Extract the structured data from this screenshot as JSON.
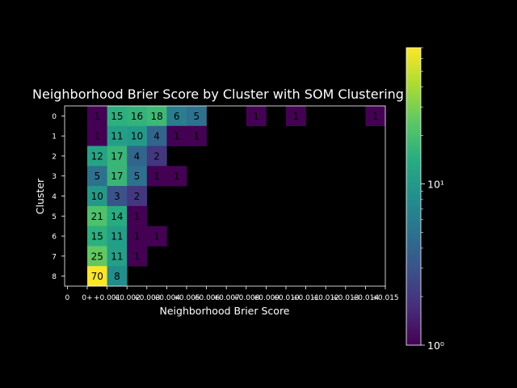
{
  "chart_data": {
    "type": "heatmap",
    "title": "Neighborhood Brier Score by Cluster with SOM Clustering",
    "xlabel": "Neighborhood Brier Score",
    "ylabel": "Cluster",
    "y_categories": [
      "0",
      "1",
      "2",
      "3",
      "4",
      "5",
      "6",
      "7",
      "8"
    ],
    "x_tick_labels": [
      "0",
      "0+",
      "+0.001",
      "+0.002",
      "+0.003",
      "+0.004",
      "+0.005",
      "+0.006",
      "+0.007",
      "+0.008",
      "+0.009",
      "+0.010",
      "+0.011",
      "+0.012",
      "+0.013",
      "+0.014",
      "+0.015"
    ],
    "x_bins": 15,
    "cells": [
      {
        "row": 0,
        "col": 1,
        "value": 1
      },
      {
        "row": 0,
        "col": 2,
        "value": 15
      },
      {
        "row": 0,
        "col": 3,
        "value": 16
      },
      {
        "row": 0,
        "col": 4,
        "value": 18
      },
      {
        "row": 0,
        "col": 5,
        "value": 6
      },
      {
        "row": 0,
        "col": 6,
        "value": 5
      },
      {
        "row": 0,
        "col": 9,
        "value": 1
      },
      {
        "row": 0,
        "col": 11,
        "value": 1
      },
      {
        "row": 0,
        "col": 15,
        "value": 1
      },
      {
        "row": 1,
        "col": 1,
        "value": 1
      },
      {
        "row": 1,
        "col": 2,
        "value": 11
      },
      {
        "row": 1,
        "col": 3,
        "value": 10
      },
      {
        "row": 1,
        "col": 4,
        "value": 4
      },
      {
        "row": 1,
        "col": 5,
        "value": 1
      },
      {
        "row": 1,
        "col": 6,
        "value": 1
      },
      {
        "row": 2,
        "col": 1,
        "value": 12
      },
      {
        "row": 2,
        "col": 2,
        "value": 17
      },
      {
        "row": 2,
        "col": 3,
        "value": 4
      },
      {
        "row": 2,
        "col": 4,
        "value": 2
      },
      {
        "row": 3,
        "col": 1,
        "value": 5
      },
      {
        "row": 3,
        "col": 2,
        "value": 17
      },
      {
        "row": 3,
        "col": 3,
        "value": 5
      },
      {
        "row": 3,
        "col": 4,
        "value": 1
      },
      {
        "row": 3,
        "col": 5,
        "value": 1
      },
      {
        "row": 4,
        "col": 1,
        "value": 10
      },
      {
        "row": 4,
        "col": 2,
        "value": 3
      },
      {
        "row": 4,
        "col": 3,
        "value": 2
      },
      {
        "row": 5,
        "col": 1,
        "value": 21
      },
      {
        "row": 5,
        "col": 2,
        "value": 14
      },
      {
        "row": 5,
        "col": 3,
        "value": 1
      },
      {
        "row": 6,
        "col": 1,
        "value": 15
      },
      {
        "row": 6,
        "col": 2,
        "value": 11
      },
      {
        "row": 6,
        "col": 3,
        "value": 1
      },
      {
        "row": 6,
        "col": 4,
        "value": 1
      },
      {
        "row": 7,
        "col": 1,
        "value": 25
      },
      {
        "row": 7,
        "col": 2,
        "value": 11
      },
      {
        "row": 7,
        "col": 3,
        "value": 1
      },
      {
        "row": 8,
        "col": 1,
        "value": 70
      },
      {
        "row": 8,
        "col": 2,
        "value": 8
      }
    ],
    "colorbar": {
      "scale": "log",
      "min": 1,
      "max": 70,
      "colormap": "viridis",
      "tick_values": [
        1,
        10
      ],
      "tick_labels": [
        "10⁰",
        "10¹"
      ]
    },
    "grid": false,
    "background": "#000000"
  }
}
